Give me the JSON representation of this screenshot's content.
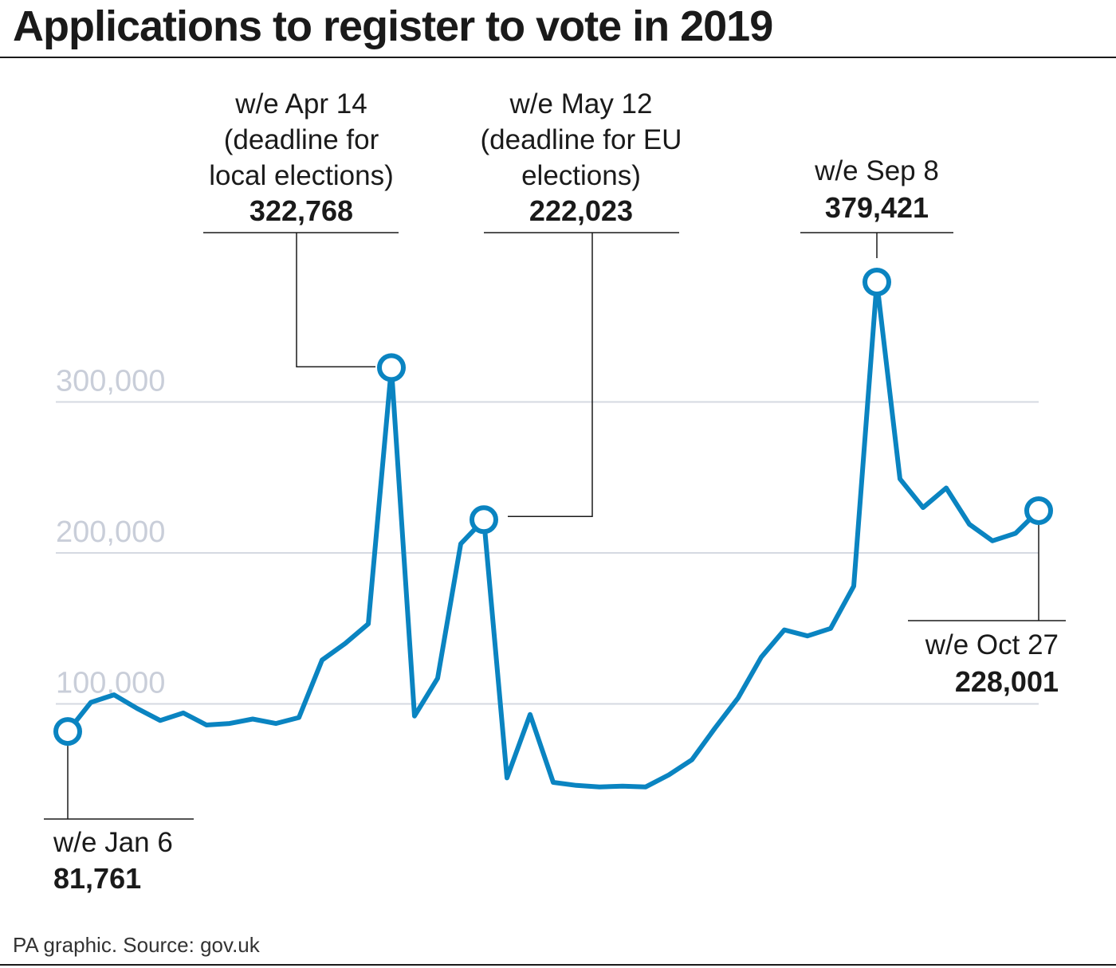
{
  "title": "Applications to register to vote in 2019",
  "source": "PA graphic. Source: gov.uk",
  "colors": {
    "line": "#0a84c1",
    "grid": "#d5d9e2",
    "tick_label": "#c9ced9",
    "text": "#1a1a1a"
  },
  "chart_data": {
    "type": "line",
    "title": "Applications to register to vote in 2019",
    "xlabel": "",
    "ylabel": "",
    "ylim": [
      0,
      420000
    ],
    "yticks": [
      100000,
      200000,
      300000
    ],
    "ytick_labels": [
      "100,000",
      "200,000",
      "300,000"
    ],
    "grid": true,
    "legend": "none",
    "series": [
      {
        "values": [
          81761,
          101000,
          106000,
          97000,
          89000,
          94000,
          86000,
          87000,
          90000,
          87000,
          91000,
          129000,
          140000,
          153000,
          322768,
          92000,
          117000,
          206000,
          222023,
          51000,
          93000,
          48000,
          46000,
          45000,
          45500,
          45000,
          53000,
          63000,
          84000,
          104000,
          131000,
          149000,
          145000,
          150000,
          178000,
          379421,
          249000,
          230000,
          243000,
          219000,
          208000,
          213000,
          228001
        ]
      }
    ],
    "annotations": [
      {
        "point_index": 0,
        "lines": [
          "w/e Jan 6"
        ],
        "value": "81,761"
      },
      {
        "point_index": 14,
        "lines": [
          "w/e Apr 14",
          "(deadline for",
          "local elections)"
        ],
        "value": "322,768"
      },
      {
        "point_index": 18,
        "lines": [
          "w/e May 12",
          "(deadline for EU",
          "elections)"
        ],
        "value": "222,023"
      },
      {
        "point_index": 35,
        "lines": [
          "w/e Sep 8"
        ],
        "value": "379,421"
      },
      {
        "point_index": 42,
        "lines": [
          "w/e Oct 27"
        ],
        "value": "228,001"
      }
    ]
  }
}
